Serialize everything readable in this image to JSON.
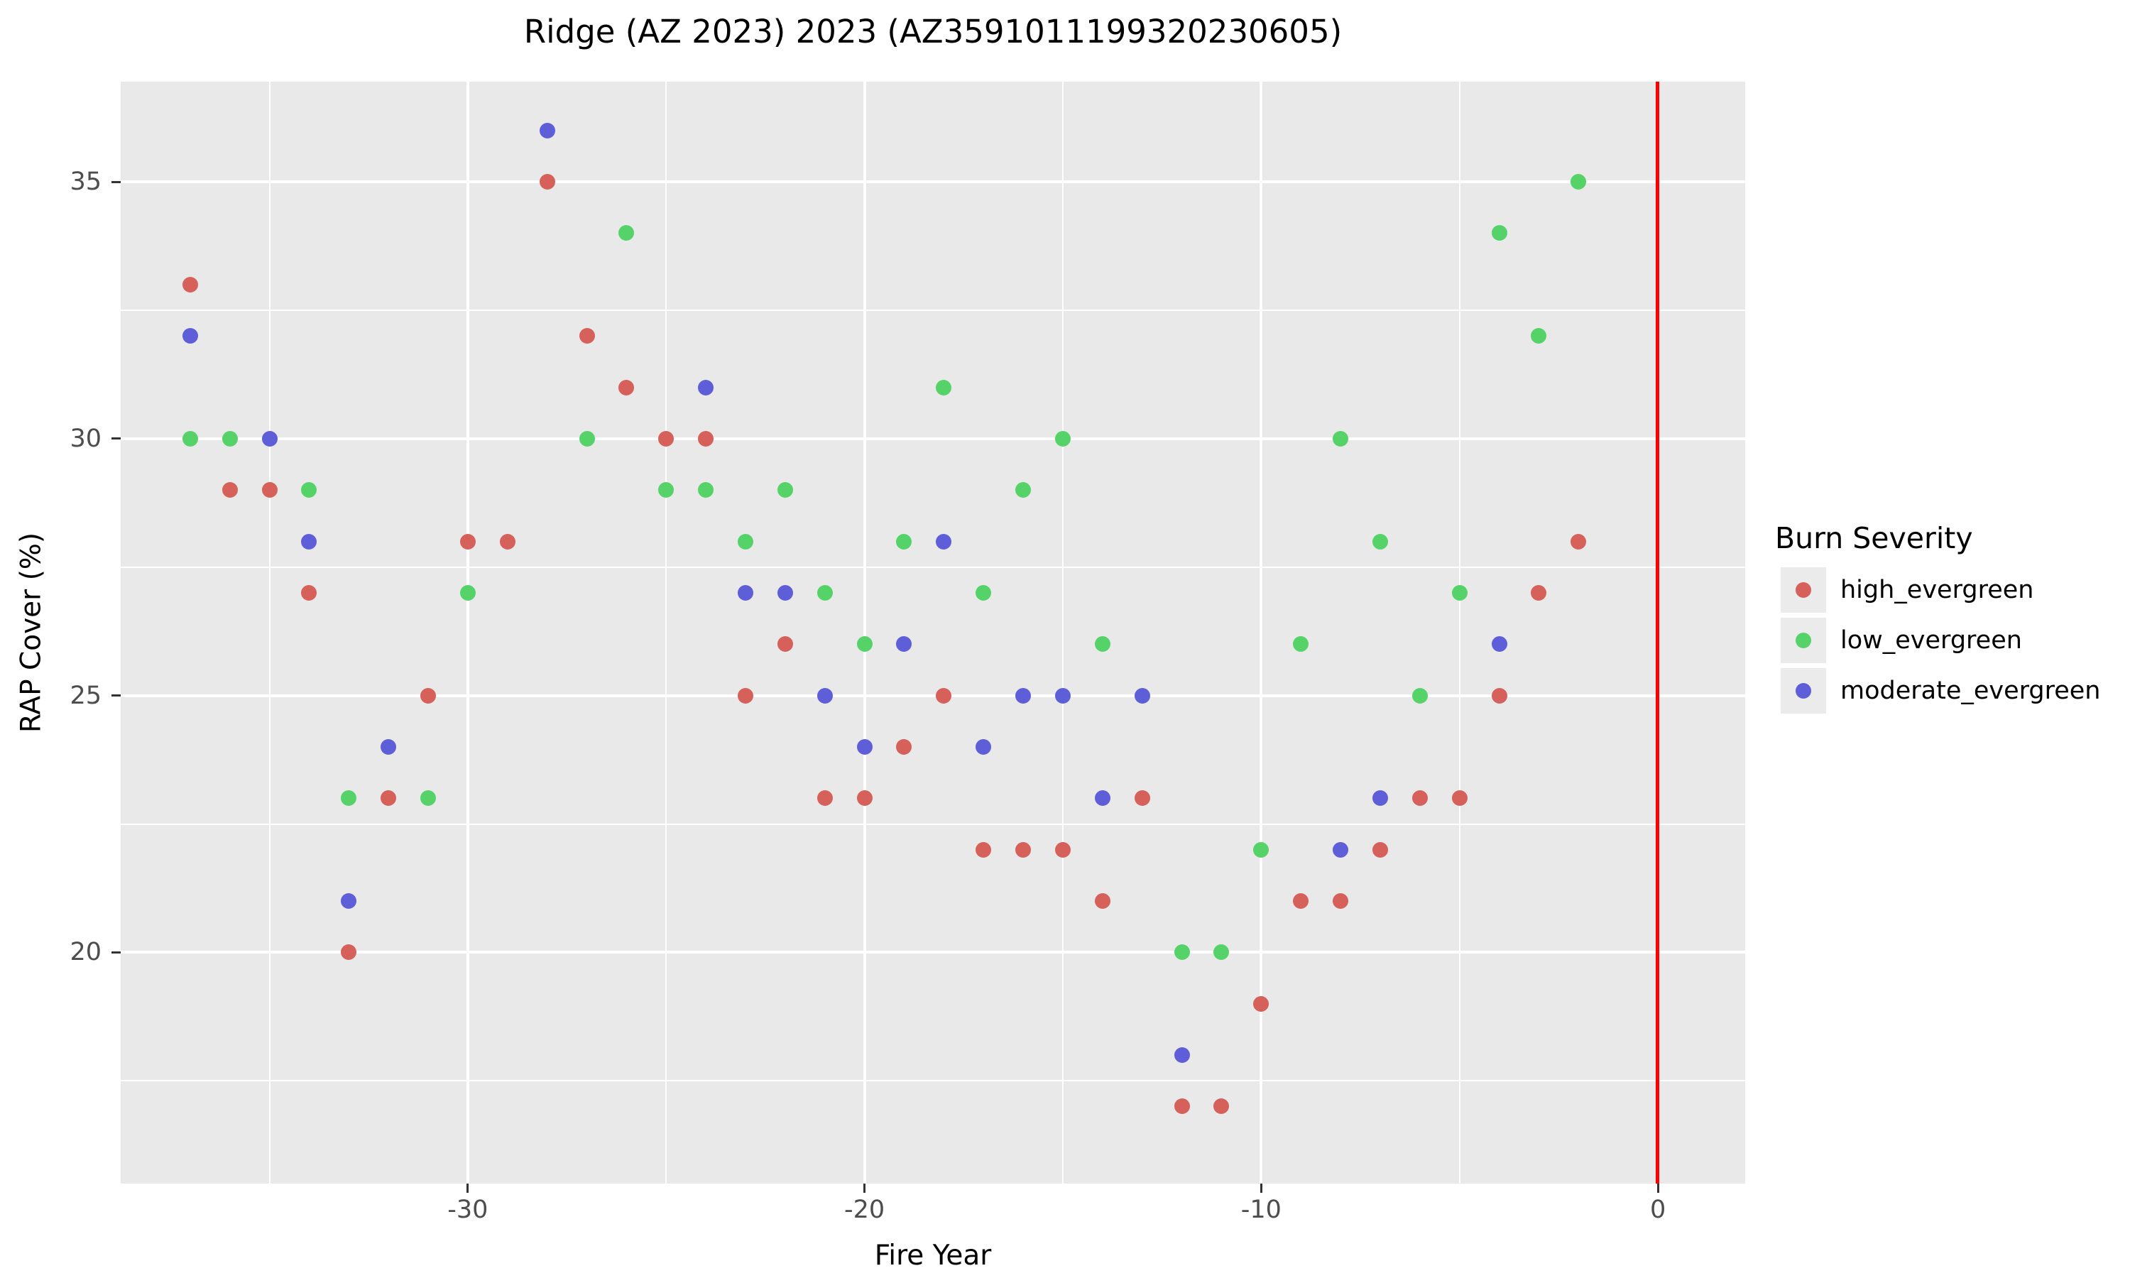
{
  "title": "Ridge (AZ 2023) 2023 (AZ3591011199320230605)",
  "x_axis": {
    "label": "Fire Year",
    "ticks": [
      -30,
      -20,
      -10,
      0
    ],
    "minor_ticks": [
      -35,
      -25,
      -15,
      -5
    ],
    "range": [
      -38.75,
      2.2
    ]
  },
  "y_axis": {
    "label": "RAP Cover (%)",
    "ticks": [
      20,
      25,
      30,
      35
    ],
    "minor_ticks": [
      17.5,
      22.5,
      27.5,
      32.5
    ],
    "range": [
      15.5,
      36.95
    ]
  },
  "legend": {
    "title": "Burn Severity",
    "items": [
      {
        "label": "high_evergreen",
        "color": "#d6605a"
      },
      {
        "label": "low_evergreen",
        "color": "#55d369"
      },
      {
        "label": "moderate_evergreen",
        "color": "#5e5fd8"
      }
    ]
  },
  "colors": {
    "panel_bg": "#e9e9e9",
    "grid": "#ffffff",
    "vline": "#ff0000",
    "tick_text": "#4d4d4d",
    "tick_mark": "#333333",
    "title_text": "#000000",
    "legend_key_bg": "#ebebeb"
  },
  "chart_data": {
    "type": "scatter",
    "title": "Ridge (AZ 2023) 2023 (AZ3591011199320230605)",
    "xlabel": "Fire Year",
    "ylabel": "RAP Cover (%)",
    "xlim": [
      -38.75,
      2.2
    ],
    "ylim": [
      15.5,
      36.95
    ],
    "grid": "on",
    "legend_position": "right",
    "vline": {
      "x": 0,
      "color": "#ff0000"
    },
    "series": [
      {
        "name": "high_evergreen",
        "color": "#d6605a",
        "points": [
          [
            -37,
            33
          ],
          [
            -36,
            29
          ],
          [
            -35,
            29
          ],
          [
            -34,
            27
          ],
          [
            -33,
            20
          ],
          [
            -32,
            23
          ],
          [
            -31,
            25
          ],
          [
            -30,
            28
          ],
          [
            -29,
            28
          ],
          [
            -28,
            35
          ],
          [
            -27,
            32
          ],
          [
            -26,
            31
          ],
          [
            -25,
            30
          ],
          [
            -24,
            30
          ],
          [
            -23,
            25
          ],
          [
            -22,
            26
          ],
          [
            -21,
            23
          ],
          [
            -20,
            23
          ],
          [
            -19,
            24
          ],
          [
            -18,
            25
          ],
          [
            -17,
            22
          ],
          [
            -16,
            22
          ],
          [
            -15,
            22
          ],
          [
            -14,
            21
          ],
          [
            -13,
            23
          ],
          [
            -12,
            17
          ],
          [
            -11,
            17
          ],
          [
            -10,
            19
          ],
          [
            -9,
            21
          ],
          [
            -8,
            21
          ],
          [
            -7,
            22
          ],
          [
            -6,
            23
          ],
          [
            -5,
            23
          ],
          [
            -4,
            25
          ],
          [
            -3,
            27
          ],
          [
            -2,
            28
          ]
        ]
      },
      {
        "name": "low_evergreen",
        "color": "#55d369",
        "points": [
          [
            -37,
            30
          ],
          [
            -36,
            30
          ],
          [
            -34,
            29
          ],
          [
            -33,
            23
          ],
          [
            -31,
            23
          ],
          [
            -30,
            27
          ],
          [
            -27,
            30
          ],
          [
            -26,
            34
          ],
          [
            -25,
            29
          ],
          [
            -24,
            29
          ],
          [
            -23,
            28
          ],
          [
            -22,
            29
          ],
          [
            -21,
            27
          ],
          [
            -20,
            26
          ],
          [
            -19,
            28
          ],
          [
            -18,
            31
          ],
          [
            -17,
            27
          ],
          [
            -16,
            29
          ],
          [
            -15,
            30
          ],
          [
            -14,
            26
          ],
          [
            -12,
            20
          ],
          [
            -11,
            20
          ],
          [
            -10,
            22
          ],
          [
            -9,
            26
          ],
          [
            -8,
            30
          ],
          [
            -7,
            28
          ],
          [
            -6,
            25
          ],
          [
            -5,
            27
          ],
          [
            -4,
            34
          ],
          [
            -3,
            32
          ],
          [
            -2,
            35
          ]
        ]
      },
      {
        "name": "moderate_evergreen",
        "color": "#5e5fd8",
        "points": [
          [
            -37,
            32
          ],
          [
            -35,
            30
          ],
          [
            -34,
            28
          ],
          [
            -33,
            21
          ],
          [
            -32,
            24
          ],
          [
            -28,
            36
          ],
          [
            -24,
            31
          ],
          [
            -23,
            27
          ],
          [
            -22,
            27
          ],
          [
            -21,
            25
          ],
          [
            -20,
            24
          ],
          [
            -19,
            26
          ],
          [
            -18,
            28
          ],
          [
            -17,
            24
          ],
          [
            -16,
            25
          ],
          [
            -15,
            25
          ],
          [
            -14,
            23
          ],
          [
            -13,
            25
          ],
          [
            -12,
            18
          ],
          [
            -8,
            22
          ],
          [
            -7,
            23
          ],
          [
            -4,
            26
          ]
        ]
      }
    ]
  }
}
